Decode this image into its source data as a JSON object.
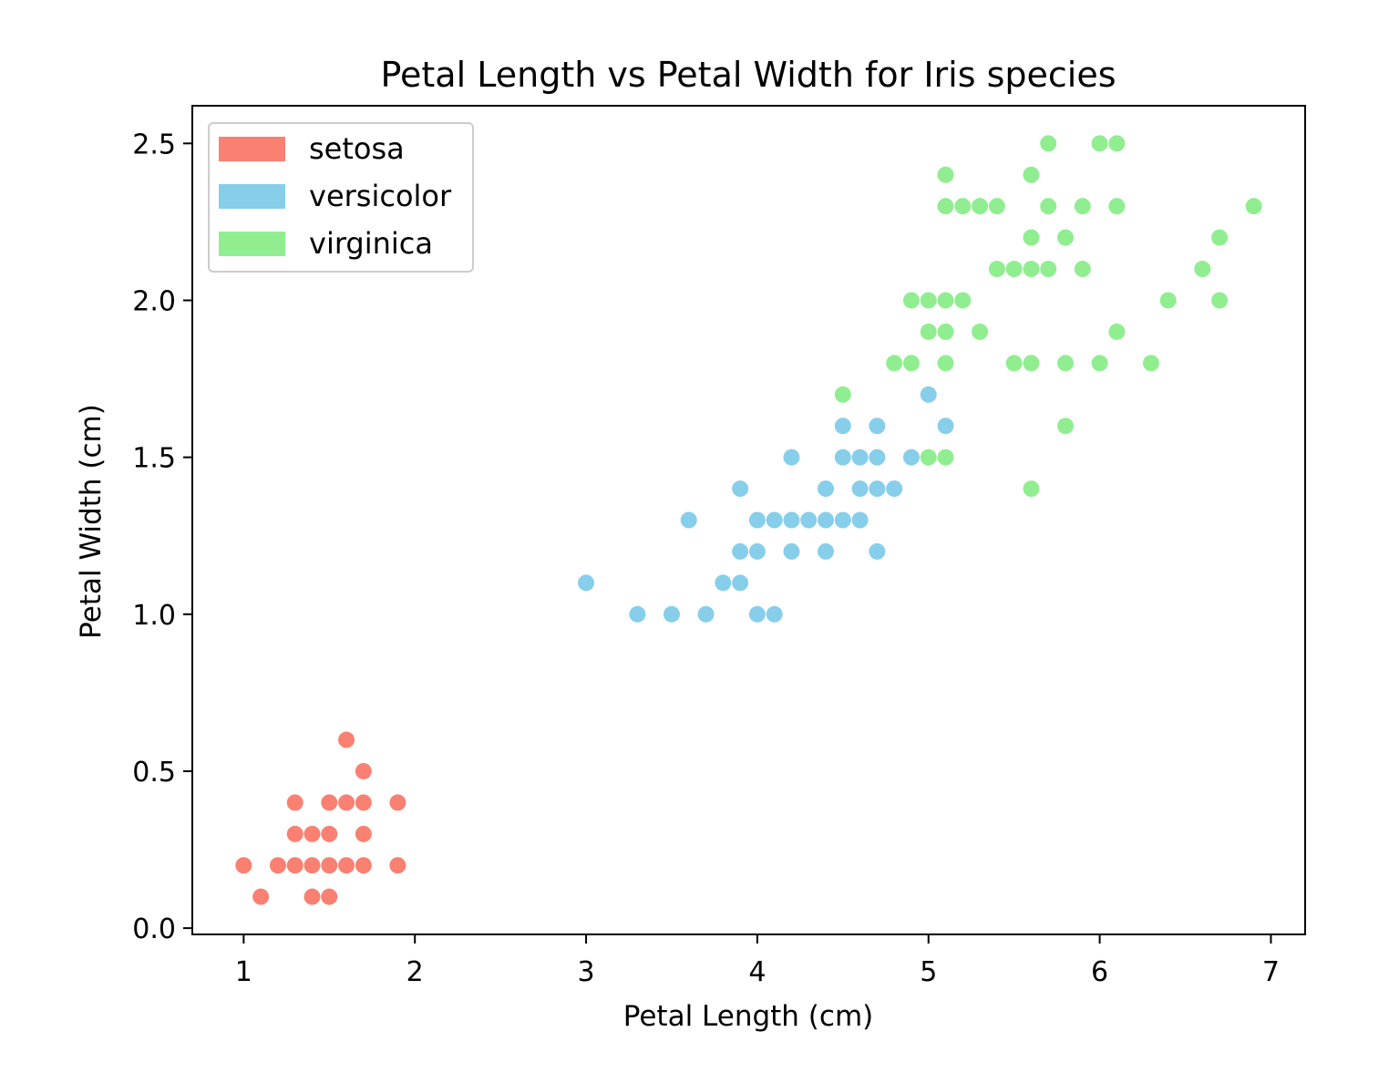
{
  "chart_data": {
    "type": "scatter",
    "title": "Petal Length vs Petal Width for Iris species",
    "xlabel": "Petal Length (cm)",
    "ylabel": "Petal Width (cm)",
    "xlim": [
      0.7,
      7.2
    ],
    "ylim": [
      -0.02,
      2.62
    ],
    "x_ticks": [
      {
        "value": 1,
        "label": "1"
      },
      {
        "value": 2,
        "label": "2"
      },
      {
        "value": 3,
        "label": "3"
      },
      {
        "value": 4,
        "label": "4"
      },
      {
        "value": 5,
        "label": "5"
      },
      {
        "value": 6,
        "label": "6"
      },
      {
        "value": 7,
        "label": "7"
      }
    ],
    "y_ticks": [
      {
        "value": 0.0,
        "label": "0.0"
      },
      {
        "value": 0.5,
        "label": "0.5"
      },
      {
        "value": 1.0,
        "label": "1.0"
      },
      {
        "value": 1.5,
        "label": "1.5"
      },
      {
        "value": 2.0,
        "label": "2.0"
      },
      {
        "value": 2.5,
        "label": "2.5"
      }
    ],
    "grid": false,
    "legend_position": "top-left",
    "series": [
      {
        "name": "setosa",
        "color": "#FA8072",
        "points": [
          [
            1.0,
            0.2
          ],
          [
            1.1,
            0.1
          ],
          [
            1.2,
            0.2
          ],
          [
            1.3,
            0.2
          ],
          [
            1.3,
            0.3
          ],
          [
            1.3,
            0.4
          ],
          [
            1.4,
            0.1
          ],
          [
            1.4,
            0.2
          ],
          [
            1.4,
            0.3
          ],
          [
            1.5,
            0.1
          ],
          [
            1.5,
            0.2
          ],
          [
            1.5,
            0.3
          ],
          [
            1.5,
            0.4
          ],
          [
            1.6,
            0.2
          ],
          [
            1.6,
            0.4
          ],
          [
            1.6,
            0.6
          ],
          [
            1.7,
            0.2
          ],
          [
            1.7,
            0.3
          ],
          [
            1.7,
            0.4
          ],
          [
            1.7,
            0.5
          ],
          [
            1.9,
            0.2
          ],
          [
            1.9,
            0.4
          ]
        ]
      },
      {
        "name": "versicolor",
        "color": "#87CEEB",
        "points": [
          [
            3.0,
            1.1
          ],
          [
            3.3,
            1.0
          ],
          [
            3.5,
            1.0
          ],
          [
            3.6,
            1.3
          ],
          [
            3.7,
            1.0
          ],
          [
            3.8,
            1.1
          ],
          [
            3.9,
            1.1
          ],
          [
            3.9,
            1.2
          ],
          [
            3.9,
            1.4
          ],
          [
            4.0,
            1.0
          ],
          [
            4.0,
            1.2
          ],
          [
            4.0,
            1.3
          ],
          [
            4.1,
            1.0
          ],
          [
            4.1,
            1.3
          ],
          [
            4.2,
            1.2
          ],
          [
            4.2,
            1.3
          ],
          [
            4.2,
            1.5
          ],
          [
            4.3,
            1.3
          ],
          [
            4.4,
            1.2
          ],
          [
            4.4,
            1.3
          ],
          [
            4.4,
            1.4
          ],
          [
            4.5,
            1.3
          ],
          [
            4.5,
            1.5
          ],
          [
            4.5,
            1.6
          ],
          [
            4.6,
            1.3
          ],
          [
            4.6,
            1.4
          ],
          [
            4.6,
            1.5
          ],
          [
            4.7,
            1.2
          ],
          [
            4.7,
            1.4
          ],
          [
            4.7,
            1.5
          ],
          [
            4.7,
            1.6
          ],
          [
            4.8,
            1.4
          ],
          [
            4.9,
            1.5
          ],
          [
            5.0,
            1.7
          ],
          [
            5.1,
            1.6
          ]
        ]
      },
      {
        "name": "virginica",
        "color": "#90EE90",
        "points": [
          [
            4.5,
            1.7
          ],
          [
            4.8,
            1.8
          ],
          [
            4.9,
            1.8
          ],
          [
            4.9,
            2.0
          ],
          [
            5.0,
            1.5
          ],
          [
            5.0,
            1.9
          ],
          [
            5.0,
            2.0
          ],
          [
            5.1,
            1.5
          ],
          [
            5.1,
            1.8
          ],
          [
            5.1,
            1.9
          ],
          [
            5.1,
            2.0
          ],
          [
            5.1,
            2.3
          ],
          [
            5.1,
            2.4
          ],
          [
            5.2,
            2.0
          ],
          [
            5.2,
            2.3
          ],
          [
            5.3,
            1.9
          ],
          [
            5.3,
            2.3
          ],
          [
            5.4,
            2.1
          ],
          [
            5.4,
            2.3
          ],
          [
            5.5,
            1.8
          ],
          [
            5.5,
            2.1
          ],
          [
            5.6,
            1.4
          ],
          [
            5.6,
            1.8
          ],
          [
            5.6,
            2.1
          ],
          [
            5.6,
            2.2
          ],
          [
            5.6,
            2.4
          ],
          [
            5.7,
            2.1
          ],
          [
            5.7,
            2.3
          ],
          [
            5.7,
            2.5
          ],
          [
            5.8,
            1.6
          ],
          [
            5.8,
            1.8
          ],
          [
            5.8,
            2.2
          ],
          [
            5.9,
            2.1
          ],
          [
            5.9,
            2.3
          ],
          [
            6.0,
            1.8
          ],
          [
            6.0,
            2.5
          ],
          [
            6.1,
            1.9
          ],
          [
            6.1,
            2.3
          ],
          [
            6.1,
            2.5
          ],
          [
            6.3,
            1.8
          ],
          [
            6.4,
            2.0
          ],
          [
            6.6,
            2.1
          ],
          [
            6.7,
            2.0
          ],
          [
            6.7,
            2.2
          ],
          [
            6.9,
            2.3
          ]
        ]
      }
    ]
  }
}
